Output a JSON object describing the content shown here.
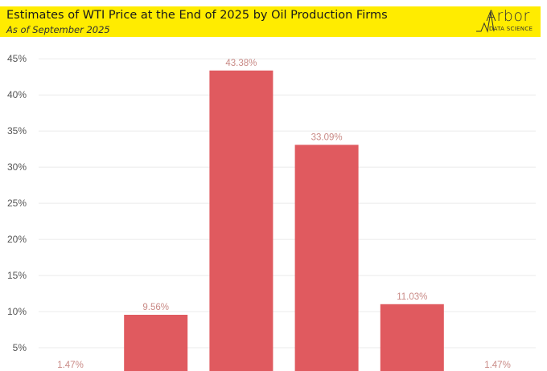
{
  "header": {
    "title": "Estimates of WTI Price at the End of 2025 by Oil Production Firms",
    "subtitle": "As of September 2025",
    "logo_word": "Arbor",
    "logo_sub": "DATA SCIENCE"
  },
  "colors": {
    "bar": "#e05a5f",
    "header_bg": "#ffec00",
    "grid": "#ebebeb"
  },
  "chart_data": {
    "type": "bar",
    "title": "Estimates of WTI Price at the End of 2025 by Oil Production Firms",
    "subtitle": "As of September 2025",
    "categories": [
      "",
      "",
      "",
      "",
      "",
      ""
    ],
    "values": [
      1.47,
      9.56,
      43.38,
      33.09,
      11.03,
      1.47
    ],
    "value_labels": [
      "1.47%",
      "9.56%",
      "43.38%",
      "33.09%",
      "11.03%",
      "1.47%"
    ],
    "yticks": [
      5,
      10,
      15,
      20,
      25,
      30,
      35,
      40,
      45
    ],
    "ytick_labels": [
      "5%",
      "10%",
      "15%",
      "20%",
      "25%",
      "30%",
      "35%",
      "40%",
      "45%"
    ],
    "ylim": [
      0,
      45
    ],
    "grid": true
  }
}
